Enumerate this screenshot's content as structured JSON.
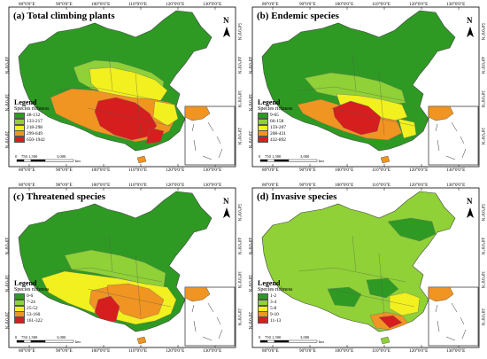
{
  "ticks": {
    "top": [
      "80°0'0\"E",
      "90°0'0\"E",
      "100°0'0\"E",
      "110°0'0\"E",
      "120°0'0\"E",
      "130°0'0\"E"
    ],
    "bottom": [
      "80°0'0\"E",
      "90°0'0\"E",
      "100°0'0\"E",
      "110°0'0\"E",
      "120°0'0\"E",
      "130°0'0\"E"
    ],
    "right": [
      "50°0'0\"N",
      "40°0'0\"N",
      "30°0'0\"N",
      "20°0'0\"N"
    ],
    "left": [
      "40°0'0\"N",
      "30°0'0\"N",
      "20°0'0\"N"
    ]
  },
  "north_label": "N",
  "scale": {
    "labels": [
      "0",
      "750",
      "1,500",
      "3,000"
    ],
    "unit": "km"
  },
  "legend_title": "Legend",
  "legend_subtitle": "Species richness",
  "panels": [
    {
      "title": "(a) Total climbing plants",
      "classes": [
        {
          "range": "48-132",
          "color": "#2e9a23"
        },
        {
          "range": "133-217",
          "color": "#8fd136"
        },
        {
          "range": "218-298",
          "color": "#f2f01e"
        },
        {
          "range": "299-649",
          "color": "#f09422"
        },
        {
          "range": "650-1942",
          "color": "#d61e1e"
        }
      ]
    },
    {
      "title": "(b) Endemic species",
      "classes": [
        {
          "range": "9-65",
          "color": "#2e9a23"
        },
        {
          "range": "66-158",
          "color": "#8fd136"
        },
        {
          "range": "159-207",
          "color": "#f2f01e"
        },
        {
          "range": "208-431",
          "color": "#f09422"
        },
        {
          "range": "432-892",
          "color": "#d61e1e"
        }
      ]
    },
    {
      "title": "(c) Threatened species",
      "classes": [
        {
          "range": "0-6",
          "color": "#2e9a23"
        },
        {
          "range": "7-24",
          "color": "#8fd136"
        },
        {
          "range": "25-52",
          "color": "#f2f01e"
        },
        {
          "range": "53-160",
          "color": "#f09422"
        },
        {
          "range": "161-322",
          "color": "#d61e1e"
        }
      ]
    },
    {
      "title": "(d) Invasive species",
      "classes": [
        {
          "range": "1-2",
          "color": "#2e9a23"
        },
        {
          "range": "3-4",
          "color": "#8fd136"
        },
        {
          "range": "5-8",
          "color": "#f2f01e"
        },
        {
          "range": "9-10",
          "color": "#f09422"
        },
        {
          "range": "11-13",
          "color": "#d61e1e"
        }
      ]
    }
  ],
  "colors": {
    "frame": "#000000",
    "sea": "#ffffff",
    "border": "#444444"
  }
}
